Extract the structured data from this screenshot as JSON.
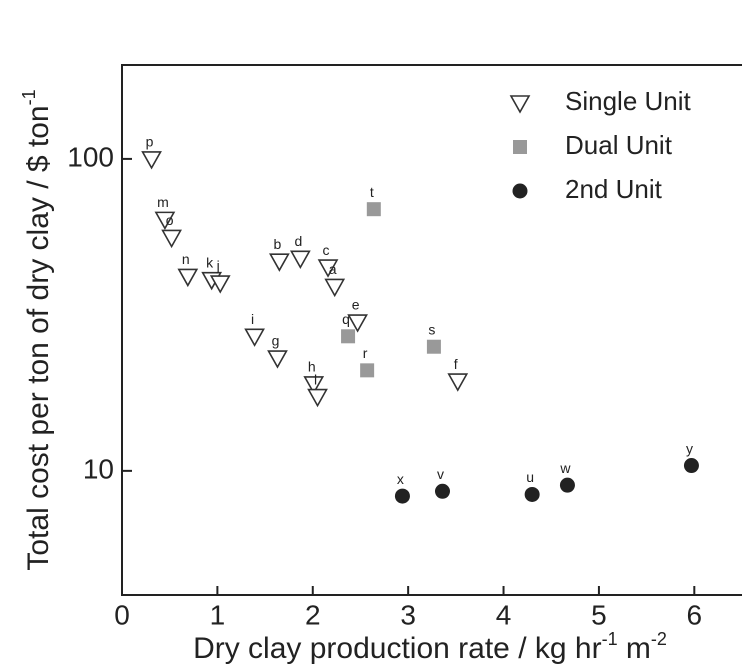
{
  "chart_data": {
    "type": "scatter",
    "xlabel": [
      "Dry clay production rate / kg hr",
      "-1",
      " m",
      "-2"
    ],
    "ylabel": [
      "Total cost per ton of dry clay / $ ton",
      "-1"
    ],
    "xlim": [
      0,
      6.5
    ],
    "xticks": [
      0,
      1,
      2,
      3,
      4,
      5,
      6
    ],
    "ylim": [
      4,
      200
    ],
    "yticks": [
      10,
      100
    ],
    "yscale": "log",
    "grid": false,
    "legend": "upper right",
    "series": [
      {
        "name": "Single Unit",
        "marker": "triangle-down",
        "color": "#333333",
        "labels": [
          "p",
          "m",
          "o",
          "n",
          "k",
          "j",
          "i",
          "g",
          "b",
          "d",
          "c",
          "a",
          "e",
          "h",
          "l",
          "f"
        ],
        "x": [
          0.31,
          0.45,
          0.52,
          0.69,
          0.94,
          1.03,
          1.39,
          1.63,
          1.65,
          1.87,
          2.16,
          2.23,
          2.47,
          2.01,
          2.05,
          3.52
        ],
        "values": [
          100,
          64,
          56,
          42,
          41,
          40,
          27,
          23,
          47,
          48,
          45,
          39,
          30,
          19,
          17.3,
          19.4
        ]
      },
      {
        "name": "Dual Unit",
        "marker": "square",
        "color": "#999999",
        "labels": [
          "t",
          "q",
          "r",
          "s"
        ],
        "x": [
          2.64,
          2.37,
          2.57,
          3.27
        ],
        "values": [
          69,
          27,
          21,
          25
        ]
      },
      {
        "name": "2nd Unit",
        "marker": "circle",
        "color": "#222222",
        "labels": [
          "x",
          "v",
          "u",
          "w",
          "y"
        ],
        "x": [
          2.94,
          3.36,
          4.3,
          4.67,
          5.97
        ],
        "values": [
          8.3,
          8.6,
          8.4,
          9.0,
          10.4
        ]
      }
    ]
  }
}
